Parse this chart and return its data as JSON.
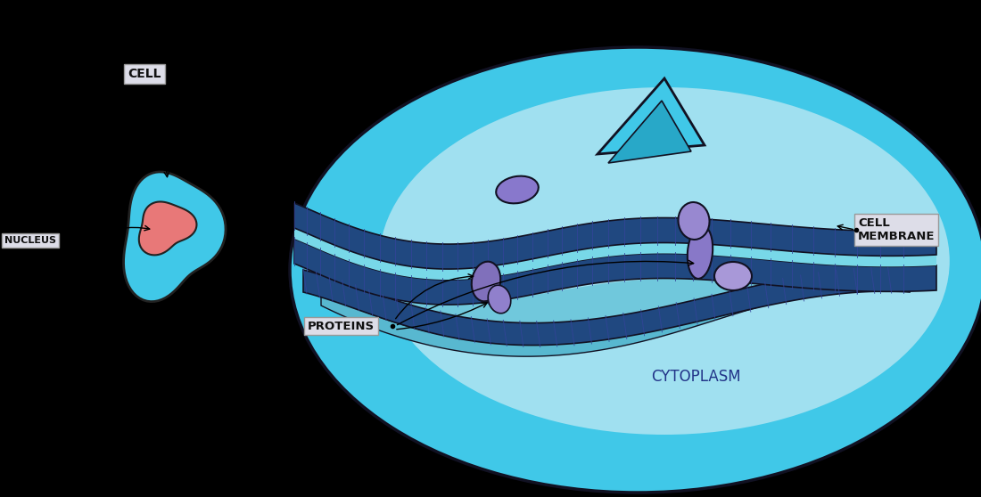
{
  "bg_color": "#000000",
  "light_blue": "#40C8E8",
  "medium_blue": "#28B0D0",
  "darker_blue": "#1890B8",
  "membrane_dark": "#1A2A80",
  "membrane_teal": "#309090",
  "light_cyan": "#88DDEE",
  "very_light_blue": "#A0E0F0",
  "nucleus_color": "#E87878",
  "purple_color": "#8878CC",
  "purple_light": "#A898D8",
  "label_bg": "#DDDDE8",
  "label_outline": "#999999",
  "label_text": "#111111",
  "cytoplasm_text": "#223388",
  "labels": {
    "cell": "CELL",
    "nucleus": "NUCLEUS",
    "cell_membrane": "CELL\nMEMBRANE",
    "proteins": "PROTEINS",
    "cytoplasm": "CYTOPLASM"
  }
}
